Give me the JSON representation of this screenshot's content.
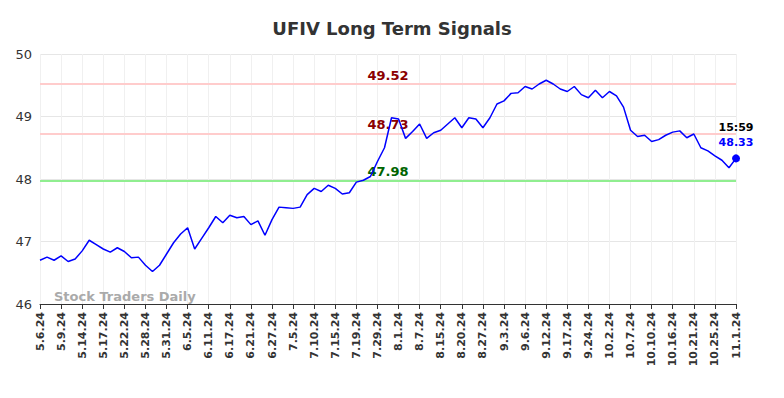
{
  "chart_data": {
    "type": "line",
    "title": "UFIV Long Term Signals",
    "categories": [
      "5.6.24",
      null,
      null,
      "5.9.24",
      null,
      null,
      "5.14.24",
      null,
      null,
      "5.17.24",
      null,
      null,
      "5.22.24",
      null,
      null,
      "5.28.24",
      null,
      null,
      "5.31.24",
      null,
      null,
      "6.5.24",
      null,
      null,
      "6.11.24",
      null,
      null,
      "6.17.24",
      null,
      null,
      "6.21.24",
      null,
      null,
      "6.27.24",
      null,
      null,
      "7.5.24",
      null,
      null,
      "7.10.24",
      null,
      null,
      "7.15.24",
      null,
      null,
      "7.19.24",
      null,
      null,
      "7.29.24",
      null,
      null,
      "8.1.24",
      null,
      null,
      "8.7.24",
      null,
      null,
      "8.15.24",
      null,
      null,
      "8.20.24",
      null,
      null,
      "8.27.24",
      null,
      null,
      "9.3.24",
      null,
      null,
      "9.6.24",
      null,
      null,
      "9.12.24",
      null,
      null,
      "9.17.24",
      null,
      null,
      "9.24.24",
      null,
      null,
      "10.2.24",
      null,
      null,
      "10.7.24",
      null,
      null,
      "10.10.24",
      null,
      null,
      "10.16.24",
      null,
      null,
      "10.21.24",
      null,
      null,
      "10.25.24",
      null,
      null,
      "11.1.24"
    ],
    "values": [
      46.7,
      46.75,
      46.7,
      46.77,
      46.68,
      46.72,
      46.85,
      47.02,
      46.95,
      46.88,
      46.83,
      46.9,
      46.84,
      46.74,
      46.75,
      46.62,
      46.52,
      46.62,
      46.8,
      46.98,
      47.12,
      47.22,
      46.88,
      47.05,
      47.22,
      47.4,
      47.3,
      47.42,
      47.38,
      47.4,
      47.27,
      47.33,
      47.1,
      47.35,
      47.55,
      47.54,
      47.53,
      47.55,
      47.75,
      47.85,
      47.8,
      47.9,
      47.85,
      47.76,
      47.78,
      47.95,
      47.98,
      48.04,
      48.28,
      48.5,
      48.98,
      48.96,
      48.65,
      48.76,
      48.88,
      48.65,
      48.74,
      48.78,
      48.88,
      48.98,
      48.82,
      48.98,
      48.96,
      48.82,
      48.98,
      49.2,
      49.25,
      49.37,
      49.38,
      49.48,
      49.44,
      49.52,
      49.58,
      49.52,
      49.44,
      49.4,
      49.48,
      49.35,
      49.3,
      49.42,
      49.3,
      49.4,
      49.33,
      49.15,
      48.78,
      48.68,
      48.7,
      48.6,
      48.63,
      48.7,
      48.75,
      48.77,
      48.66,
      48.72,
      48.5,
      48.45,
      48.37,
      48.3,
      48.18,
      48.33
    ],
    "color": "#0000ff",
    "ylim": [
      46,
      50
    ],
    "yticks": [
      46,
      47,
      48,
      49,
      50
    ],
    "grid": true,
    "levels": [
      {
        "value": 49.52,
        "color": "#ffcccc",
        "label_color": "#8b0000"
      },
      {
        "value": 48.73,
        "color": "#ffcccc",
        "label_color": "#8b0000"
      },
      {
        "value": 47.98,
        "color": "#90ee90",
        "label_color": "#006400"
      }
    ],
    "last_point_time": "15:59",
    "watermark": "Stock Traders Daily"
  }
}
